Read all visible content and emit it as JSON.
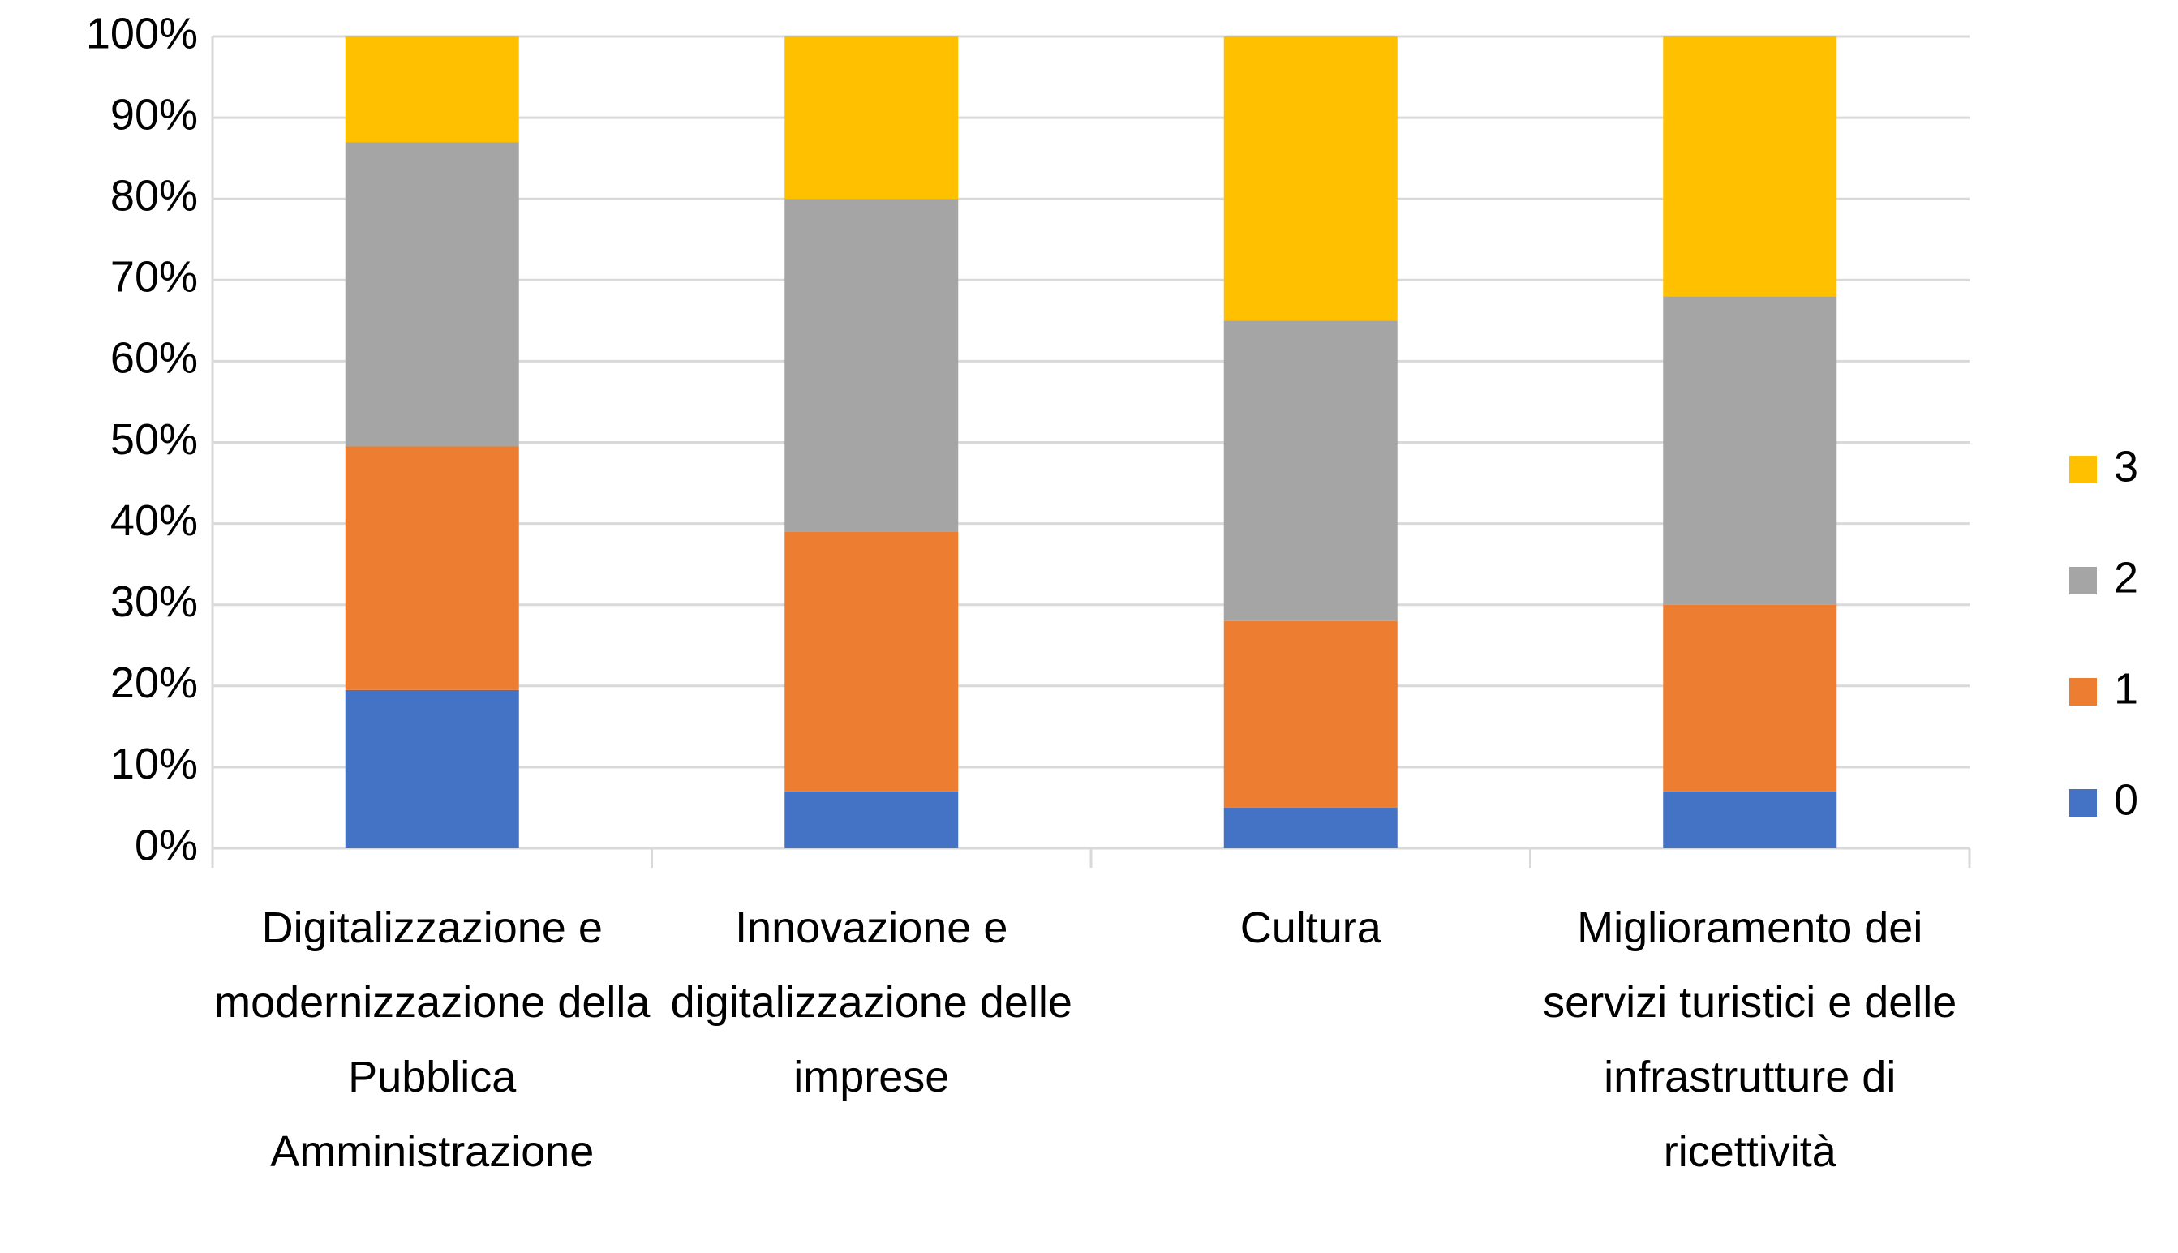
{
  "chart_data": {
    "type": "stacked_bar",
    "categories": [
      "Digitalizzazione e modernizzazione della Pubblica Amministrazione",
      "Innovazione e digitalizzazione delle imprese",
      "Cultura",
      "Miglioramento dei servizi turistici e delle infrastrutture di ricettività"
    ],
    "series": [
      {
        "name": "0",
        "color": "#4472c4",
        "values": [
          19.5,
          7,
          5,
          7
        ]
      },
      {
        "name": "1",
        "color": "#ed7d31",
        "values": [
          30,
          32,
          23,
          23
        ]
      },
      {
        "name": "2",
        "color": "#a5a5a5",
        "values": [
          37.5,
          41,
          37,
          38
        ]
      },
      {
        "name": "3",
        "color": "#ffc000",
        "values": [
          13,
          20,
          35,
          32
        ]
      }
    ],
    "ylim": [
      0,
      100
    ],
    "yticks": [
      {
        "value": 0,
        "label": "0%"
      },
      {
        "value": 10,
        "label": "10%"
      },
      {
        "value": 20,
        "label": "20%"
      },
      {
        "value": 30,
        "label": "30%"
      },
      {
        "value": 40,
        "label": "40%"
      },
      {
        "value": 50,
        "label": "50%"
      },
      {
        "value": 60,
        "label": "60%"
      },
      {
        "value": 70,
        "label": "70%"
      },
      {
        "value": 80,
        "label": "80%"
      },
      {
        "value": 90,
        "label": "90%"
      },
      {
        "value": 100,
        "label": "100%"
      }
    ],
    "grid": true,
    "legend": "right"
  }
}
